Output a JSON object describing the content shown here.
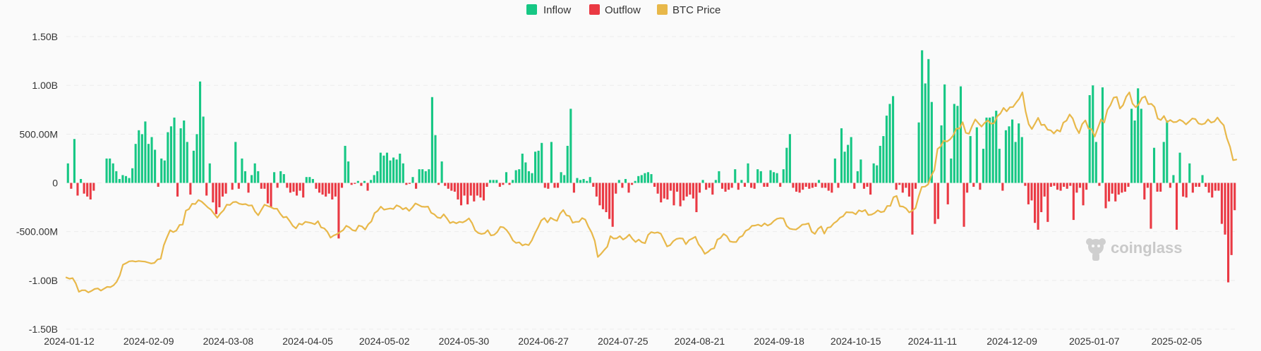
{
  "legend": [
    {
      "label": "Inflow",
      "color": "#16c784"
    },
    {
      "label": "Outflow",
      "color": "#ea3943"
    },
    {
      "label": "BTC Price",
      "color": "#e8b84a"
    }
  ],
  "watermark": {
    "text": "coinglass",
    "icon": "coinglass-logo-icon"
  },
  "chart_data": {
    "type": "bar",
    "title": "",
    "xlabel": "",
    "ylabel": "",
    "ylim": [
      -1500000000,
      1500000000
    ],
    "yticks": [
      {
        "value": 1500000000,
        "label": "1.50B"
      },
      {
        "value": 1000000000,
        "label": "1.00B"
      },
      {
        "value": 500000000,
        "label": "500.00M"
      },
      {
        "value": 0,
        "label": "0"
      },
      {
        "value": -500000000,
        "label": "-500.00M"
      },
      {
        "value": -1000000000,
        "label": "-1.00B"
      },
      {
        "value": -1500000000,
        "label": "-1.50B"
      }
    ],
    "xticks": [
      "2024-01-12",
      "2024-02-09",
      "2024-03-08",
      "2024-04-05",
      "2024-05-02",
      "2024-05-30",
      "2024-06-27",
      "2024-07-25",
      "2024-08-21",
      "2024-09-18",
      "2024-10-15",
      "2024-11-11",
      "2024-12-09",
      "2025-01-07",
      "2025-02-05"
    ],
    "start_date": "2024-01-11",
    "end_date": "2025-02-26",
    "grid": true,
    "legend_position": "top-center",
    "unit": "USD",
    "series": [
      {
        "name": "Inflow / Outflow",
        "type": "bar",
        "positive_color": "#16c784",
        "negative_color": "#ea3943",
        "values_millions": [
          200,
          -60,
          450,
          -130,
          40,
          -110,
          -140,
          -170,
          -80,
          0,
          0,
          0,
          250,
          250,
          200,
          120,
          40,
          80,
          70,
          50,
          150,
          400,
          540,
          500,
          630,
          400,
          470,
          340,
          -40,
          250,
          230,
          520,
          580,
          670,
          -140,
          560,
          640,
          420,
          -120,
          330,
          500,
          1040,
          680,
          -130,
          200,
          -200,
          -320,
          -250,
          -140,
          -110,
          0,
          -70,
          420,
          -60,
          250,
          120,
          -100,
          80,
          200,
          120,
          -60,
          -60,
          -210,
          -250,
          110,
          -50,
          120,
          90,
          -50,
          -100,
          -90,
          -130,
          -80,
          -150,
          60,
          60,
          40,
          -60,
          -100,
          -120,
          -140,
          -110,
          -170,
          -140,
          -570,
          -50,
          380,
          220,
          -20,
          -10,
          20,
          -30,
          20,
          -80,
          30,
          80,
          120,
          310,
          280,
          310,
          230,
          260,
          240,
          300,
          200,
          -20,
          -10,
          60,
          -60,
          140,
          140,
          120,
          140,
          880,
          490,
          -20,
          220,
          -30,
          -60,
          -80,
          -90,
          -170,
          -230,
          -130,
          -220,
          -130,
          -190,
          -130,
          -150,
          -180,
          -40,
          30,
          30,
          30,
          -40,
          -20,
          110,
          -20,
          30,
          130,
          140,
          300,
          210,
          120,
          100,
          320,
          330,
          410,
          -50,
          -60,
          420,
          -50,
          -50,
          110,
          80,
          380,
          760,
          -100,
          50,
          30,
          40,
          20,
          60,
          -40,
          -140,
          -230,
          -270,
          -300,
          -370,
          -450,
          -110,
          30,
          -50,
          40,
          -100,
          -20,
          20,
          70,
          80,
          100,
          110,
          90,
          -40,
          -110,
          -200,
          -160,
          -170,
          -80,
          -230,
          -90,
          -240,
          -180,
          -140,
          -120,
          -160,
          -300,
          -100,
          30,
          -70,
          -50,
          -120,
          30,
          120,
          -60,
          -90,
          -70,
          -50,
          140,
          -70,
          30,
          -40,
          200,
          -50,
          -60,
          140,
          120,
          -40,
          -40,
          130,
          110,
          100,
          -40,
          140,
          360,
          500,
          -50,
          -90,
          -100,
          -70,
          -40,
          -60,
          -50,
          -40,
          30,
          -50,
          -50,
          -80,
          -100,
          250,
          -50,
          560,
          320,
          390,
          470,
          -60,
          120,
          240,
          -60,
          -40,
          -120,
          200,
          180,
          380,
          480,
          690,
          810,
          890,
          -70,
          -20,
          -100,
          -50,
          -140,
          -530,
          -60,
          620,
          1360,
          1020,
          1270,
          830,
          -420,
          -370,
          590,
          1010,
          -220,
          250,
          810,
          790,
          990,
          -450,
          -100,
          480,
          -40,
          570,
          -70,
          350,
          670,
          670,
          680,
          740,
          350,
          -80,
          540,
          580,
          650,
          420,
          610,
          470,
          -30,
          -220,
          -180,
          -410,
          -480,
          -300,
          -140,
          -400,
          -40,
          -30,
          -70,
          -80,
          -40,
          -60,
          -30,
          -380,
          -100,
          -50,
          -230,
          -70,
          900,
          1000,
          420,
          -30,
          980,
          -260,
          -190,
          -110,
          -190,
          -120,
          -100,
          -90,
          -40,
          760,
          640,
          970,
          760,
          -170,
          -50,
          -470,
          360,
          -90,
          -90,
          420,
          640,
          -50,
          80,
          -480,
          310,
          -140,
          -150,
          200,
          -100,
          -40,
          -40,
          80,
          -40,
          -100,
          -150,
          -80,
          -80,
          -420,
          -530,
          -1020,
          -740,
          -280
        ]
      },
      {
        "name": "BTC Price",
        "type": "line",
        "color": "#e8b84a",
        "values": [
          46600,
          46200,
          46400,
          44700,
          42000,
          42500,
          42500,
          41800,
          42300,
          42900,
          43100,
          42400,
          43000,
          43600,
          43500,
          44100,
          45200,
          47300,
          50700,
          51200,
          51800,
          51900,
          51700,
          51900,
          51800,
          51700,
          51400,
          51100,
          51300,
          52400,
          52600,
          57000,
          59500,
          61800,
          61200,
          61700,
          63500,
          63600,
          68100,
          68600,
          70300,
          70200,
          71500,
          71000,
          70100,
          69100,
          68400,
          67000,
          65800,
          67200,
          68200,
          70000,
          69900,
          70800,
          70900,
          70300,
          70100,
          70200,
          69700,
          69800,
          67800,
          66600,
          68300,
          70000,
          69600,
          69200,
          68700,
          68700,
          67100,
          65900,
          66100,
          64800,
          63200,
          62400,
          63900,
          63600,
          64500,
          64300,
          64100,
          63700,
          64700,
          62700,
          62400,
          61300,
          59400,
          60100,
          60500,
          61200,
          61800,
          63200,
          62700,
          61800,
          61600,
          63300,
          63000,
          62000,
          63700,
          64600,
          67300,
          68000,
          69400,
          68400,
          68600,
          68800,
          68600,
          69800,
          69400,
          68500,
          69000,
          68000,
          69100,
          70400,
          69900,
          69400,
          69300,
          69400,
          67400,
          66900,
          65900,
          65700,
          66900,
          65600,
          64100,
          64500,
          64000,
          64500,
          64300,
          64800,
          65600,
          64100,
          61700,
          60900,
          60600,
          60800,
          61800,
          60100,
          60300,
          61200,
          62900,
          62700,
          61800,
          60400,
          58500,
          57700,
          57900,
          56900,
          57300,
          57000,
          58500,
          60800,
          62700,
          64900,
          65700,
          64300,
          65800,
          65200,
          64800,
          67100,
          68300,
          66600,
          66300,
          64200,
          64500,
          64500,
          65700,
          65200,
          62900,
          61100,
          58400,
          53200,
          54200,
          55400,
          56500,
          59900,
          59100,
          59200,
          59900,
          58800,
          59400,
          60400,
          59000,
          58000,
          58800,
          57900,
          57600,
          60300,
          61200,
          60900,
          61100,
          60700,
          58700,
          56600,
          57000,
          58300,
          59000,
          59200,
          59100,
          57300,
          58600,
          59100,
          59700,
          57300,
          56000,
          54200,
          54800,
          55700,
          56000,
          58800,
          59300,
          60600,
          59900,
          58200,
          58000,
          58000,
          59500,
          60000,
          61600,
          62100,
          63200,
          63300,
          63600,
          63100,
          64000,
          63300,
          63800,
          64800,
          65500,
          65700,
          65600,
          63200,
          62300,
          62100,
          62000,
          62700,
          63600,
          63700,
          64000,
          61300,
          60600,
          62200,
          63000,
          60700,
          62600,
          62800,
          64000,
          64700,
          65800,
          66300,
          67600,
          67500,
          67500,
          66900,
          68200,
          67800,
          68300,
          66700,
          66800,
          67300,
          68200,
          67600,
          67800,
          69600,
          69600,
          72400,
          72800,
          69500,
          69400,
          68800,
          67500,
          68100,
          68900,
          72600,
          75700,
          75800,
          76500,
          79300,
          81100,
          87900,
          88700,
          90600,
          90300,
          91000,
          92300,
          94400,
          94500,
          96500,
          93100,
          92800,
          95300,
          97400,
          96200,
          95100,
          96300,
          97100,
          96000,
          96200,
          98400,
          99300,
          101100,
          100000,
          101300,
          101400,
          102800,
          104100,
          106100,
          100000,
          95900,
          94300,
          96100,
          97900,
          95600,
          95700,
          94100,
          93900,
          92900,
          94000,
          93500,
          96400,
          97000,
          99000,
          97700,
          94800,
          93000,
          95900,
          97100,
          94500,
          94200,
          91900,
          94700,
          97400,
          96400,
          100500,
          102000,
          104400,
          104600,
          100900,
          102000,
          104700,
          106100,
          102500,
          101300,
          102300,
          104300,
          104800,
          102300,
          102400,
          101400,
          97700,
          97200,
          98500,
          96500,
          97200,
          96500,
          96600,
          97300,
          96800,
          95800,
          96700,
          97700,
          97500,
          96100,
          95800,
          96100,
          97400,
          96400,
          96700,
          98000,
          96600,
          95500,
          91400,
          88600,
          84300,
          84500
        ]
      }
    ]
  }
}
